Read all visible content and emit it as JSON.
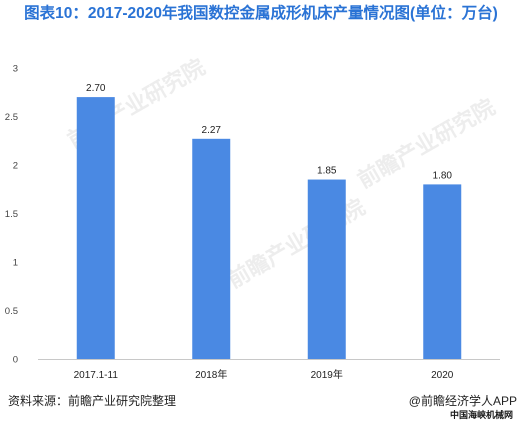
{
  "title": "图表10：2017-2020年我国数控金属成形机床产量情况图(单位：万台)",
  "source": "资料来源：前瞻产业研究院整理",
  "brand": "@前瞻经济学人APP",
  "site": "中国海峡机械网",
  "watermark": "前瞻产业研究院",
  "colors": {
    "bar": "#4a89e3",
    "title": "#2a73d5"
  },
  "chart_data": {
    "type": "bar",
    "categories": [
      "2017.1-11",
      "2018年",
      "2019年",
      "2020"
    ],
    "values": [
      2.7,
      2.27,
      1.85,
      1.8
    ],
    "data_labels": [
      "2.70",
      "2.27",
      "1.85",
      "1.80"
    ],
    "title": "图表10：2017-2020年我国数控金属成形机床产量情况图(单位：万台)",
    "xlabel": "",
    "ylabel": "",
    "ylim": [
      0,
      3
    ],
    "yticks": [
      0,
      0.5,
      1,
      1.5,
      2,
      2.5,
      3
    ],
    "ytick_labels": [
      "0",
      "0.5",
      "1",
      "1.5",
      "2",
      "2.5",
      "3"
    ],
    "grid": false,
    "legend": "none"
  }
}
